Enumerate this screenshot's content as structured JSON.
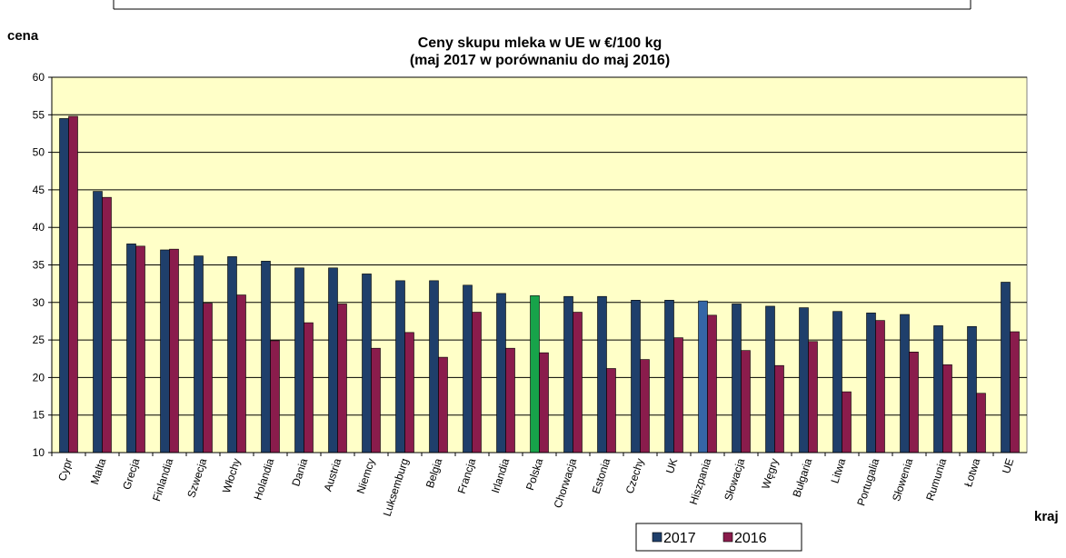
{
  "chart_data": {
    "type": "bar",
    "title": "Ceny skupu mleka  w UE  w €/100 kg",
    "subtitle": "(maj  2017  w porównaniu do  maj  2016)",
    "y_label": "cena",
    "x_label": "kraj",
    "categories": [
      "Cypr",
      "Malta",
      "Grecja",
      "Finlandia",
      "Szwecja",
      "Włochy",
      "Holandia",
      "Dania",
      "Austria",
      "Niemcy",
      "Luksemburg",
      "Belgia",
      "Francja",
      "Irlandia",
      "Polska",
      "Chorwacja",
      "Estonia",
      "Czechy",
      "UK",
      "Hiszpania",
      "Słowacja",
      "Węgry",
      "Bułgaria",
      "Litwa",
      "Portugalia",
      "Słowenia",
      "Rumunia",
      "Łotwa",
      "UE"
    ],
    "series": [
      {
        "name": "2017",
        "color": "#1f3f6b",
        "point_colors": [
          "#1f3f6b",
          "#1f3f6b",
          "#1f3f6b",
          "#1f3f6b",
          "#1f3f6b",
          "#1f3f6b",
          "#1f3f6b",
          "#1f3f6b",
          "#1f3f6b",
          "#1f3f6b",
          "#1f3f6b",
          "#1f3f6b",
          "#1f3f6b",
          "#1f3f6b",
          "#17a34a",
          "#1f3f6b",
          "#1f3f6b",
          "#1f3f6b",
          "#1f3f6b",
          "#3566a6",
          "#1f3f6b",
          "#1f3f6b",
          "#1f3f6b",
          "#1f3f6b",
          "#1f3f6b",
          "#1f3f6b",
          "#1f3f6b",
          "#1f3f6b",
          "#1f3f6b"
        ],
        "values": [
          54.5,
          44.8,
          37.8,
          37.0,
          36.2,
          36.1,
          35.5,
          34.6,
          34.6,
          33.8,
          32.9,
          32.9,
          32.3,
          31.2,
          30.9,
          30.8,
          30.8,
          30.3,
          30.3,
          30.2,
          29.8,
          29.5,
          29.3,
          28.8,
          28.6,
          28.4,
          26.9,
          26.8,
          32.7
        ]
      },
      {
        "name": "2016",
        "color": "#8a1c4c",
        "values": [
          54.8,
          44.0,
          37.5,
          37.1,
          29.9,
          31.0,
          24.9,
          27.3,
          29.8,
          23.9,
          26.0,
          22.7,
          28.7,
          23.9,
          23.3,
          28.7,
          21.2,
          22.4,
          25.3,
          28.3,
          23.6,
          21.6,
          24.8,
          18.1,
          27.6,
          23.4,
          21.7,
          17.9,
          26.1
        ]
      }
    ],
    "ylim": [
      10,
      60
    ],
    "yticks": [
      10,
      15,
      20,
      25,
      30,
      35,
      40,
      45,
      50,
      55,
      60
    ],
    "grid": true,
    "plot_background": "#ffffc8",
    "legend": "bottom"
  }
}
